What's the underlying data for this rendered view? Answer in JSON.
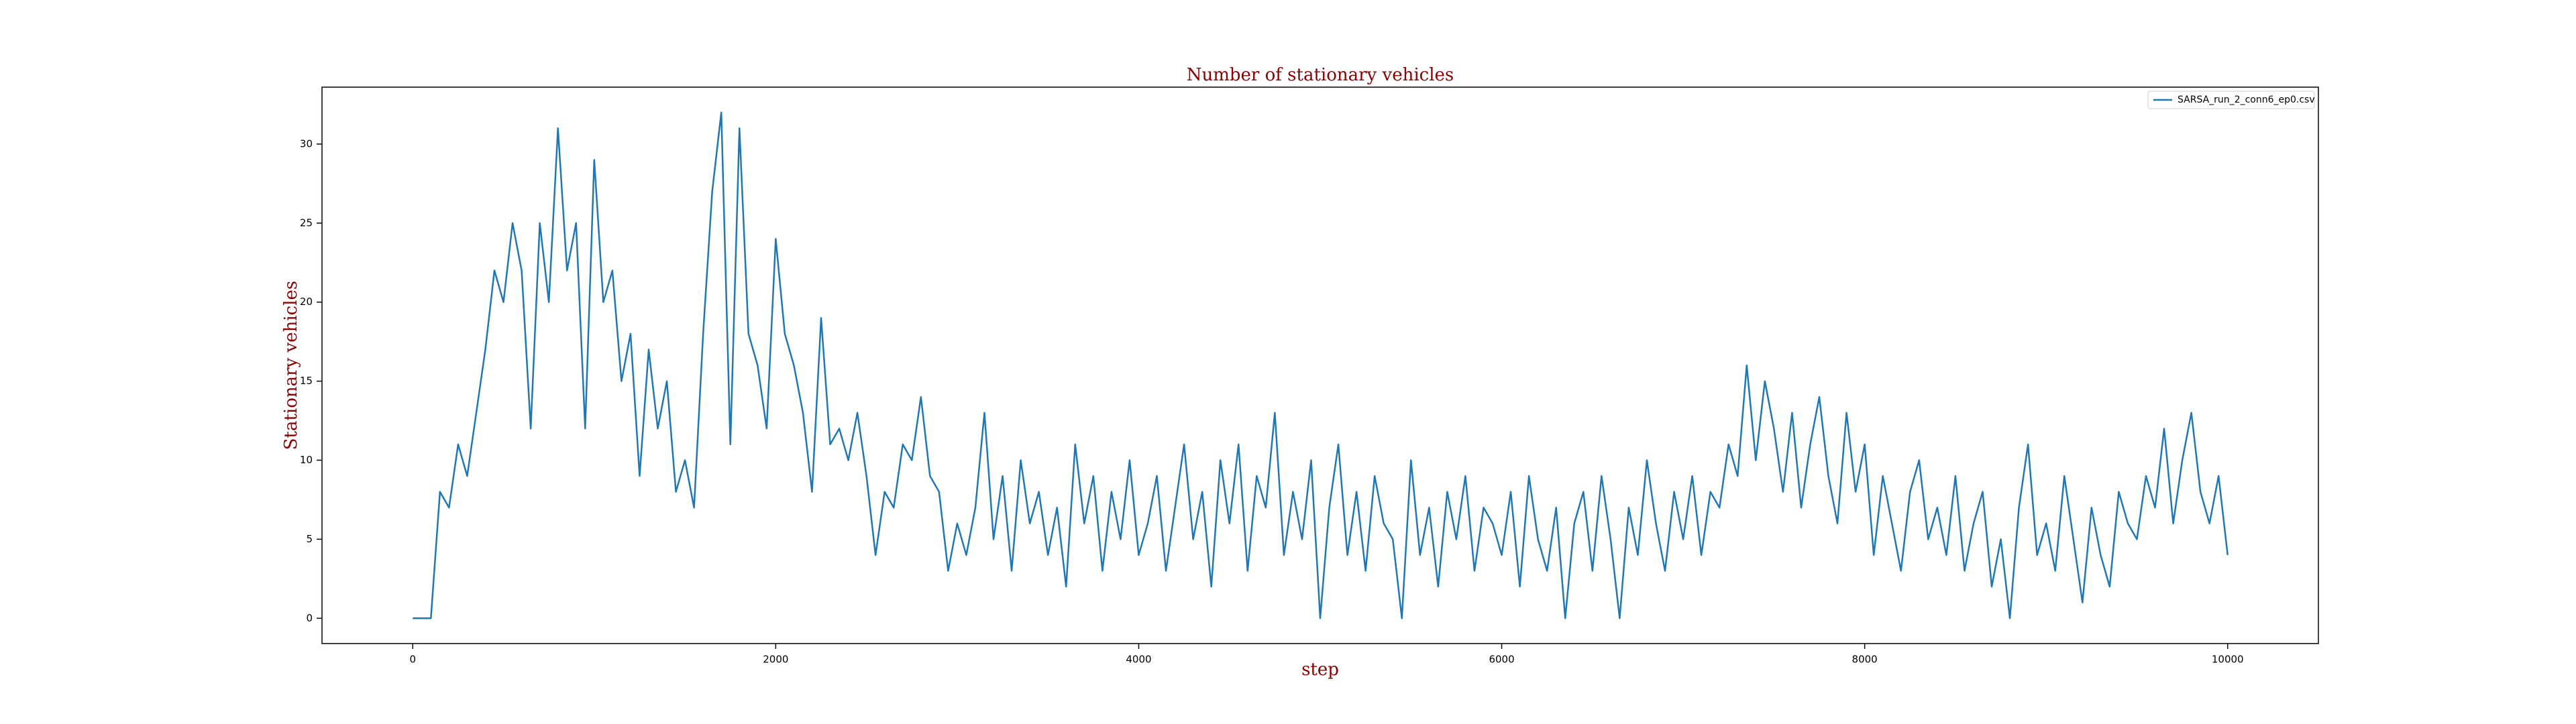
{
  "chart_data": {
    "type": "line",
    "title": "Number of stationary vehicles",
    "xlabel": "step",
    "ylabel": "Stationary vehicles",
    "x": [
      0,
      50,
      100,
      150,
      200,
      250,
      300,
      350,
      400,
      450,
      500,
      550,
      600,
      650,
      700,
      750,
      800,
      850,
      900,
      950,
      1000,
      1050,
      1100,
      1150,
      1200,
      1250,
      1300,
      1350,
      1400,
      1450,
      1500,
      1550,
      1600,
      1650,
      1700,
      1750,
      1800,
      1850,
      1900,
      1950,
      2000,
      2050,
      2100,
      2150,
      2200,
      2250,
      2300,
      2350,
      2400,
      2450,
      2500,
      2550,
      2600,
      2650,
      2700,
      2750,
      2800,
      2850,
      2900,
      2950,
      3000,
      3050,
      3100,
      3150,
      3200,
      3250,
      3300,
      3350,
      3400,
      3450,
      3500,
      3550,
      3600,
      3650,
      3700,
      3750,
      3800,
      3850,
      3900,
      3950,
      4000,
      4050,
      4100,
      4150,
      4200,
      4250,
      4300,
      4350,
      4400,
      4450,
      4500,
      4550,
      4600,
      4650,
      4700,
      4750,
      4800,
      4850,
      4900,
      4950,
      5000,
      5050,
      5100,
      5150,
      5200,
      5250,
      5300,
      5350,
      5400,
      5450,
      5500,
      5550,
      5600,
      5650,
      5700,
      5750,
      5800,
      5850,
      5900,
      5950,
      6000,
      6050,
      6100,
      6150,
      6200,
      6250,
      6300,
      6350,
      6400,
      6450,
      6500,
      6550,
      6600,
      6650,
      6700,
      6750,
      6800,
      6850,
      6900,
      6950,
      7000,
      7050,
      7100,
      7150,
      7200,
      7250,
      7300,
      7350,
      7400,
      7450,
      7500,
      7550,
      7600,
      7650,
      7700,
      7750,
      7800,
      7850,
      7900,
      7950,
      8000,
      8050,
      8100,
      8150,
      8200,
      8250,
      8300,
      8350,
      8400,
      8450,
      8500,
      8550,
      8600,
      8650,
      8700,
      8750,
      8800,
      8850,
      8900,
      8950,
      9000,
      9050,
      9100,
      9150,
      9200,
      9250,
      9300,
      9350,
      9400,
      9450,
      9500,
      9550,
      9600,
      9650,
      9700,
      9750,
      9800,
      9850,
      9900,
      9950,
      10000
    ],
    "series": [
      {
        "name": "SARSA_run_2_conn6_ep0.csv",
        "color": "#1f77b4",
        "values": [
          0,
          0,
          0,
          8,
          7,
          11,
          9,
          13,
          17,
          22,
          20,
          25,
          22,
          12,
          25,
          20,
          31,
          22,
          25,
          12,
          29,
          20,
          22,
          15,
          18,
          9,
          17,
          12,
          15,
          8,
          10,
          7,
          18,
          27,
          32,
          11,
          31,
          18,
          16,
          12,
          24,
          18,
          16,
          13,
          8,
          19,
          11,
          12,
          10,
          13,
          9,
          4,
          8,
          7,
          11,
          10,
          14,
          9,
          8,
          3,
          6,
          4,
          7,
          13,
          5,
          9,
          3,
          10,
          6,
          8,
          4,
          7,
          2,
          11,
          6,
          9,
          3,
          8,
          5,
          10,
          4,
          6,
          9,
          3,
          7,
          11,
          5,
          8,
          2,
          10,
          6,
          11,
          3,
          9,
          7,
          13,
          4,
          8,
          5,
          10,
          0,
          7,
          11,
          4,
          8,
          3,
          9,
          6,
          5,
          0,
          10,
          4,
          7,
          2,
          8,
          5,
          9,
          3,
          7,
          6,
          4,
          8,
          2,
          9,
          5,
          3,
          7,
          0,
          6,
          8,
          3,
          9,
          5,
          0,
          7,
          4,
          10,
          6,
          3,
          8,
          5,
          9,
          4,
          8,
          7,
          11,
          9,
          16,
          10,
          15,
          12,
          8,
          13,
          7,
          11,
          14,
          9,
          6,
          13,
          8,
          11,
          4,
          9,
          6,
          3,
          8,
          10,
          5,
          7,
          4,
          9,
          3,
          6,
          8,
          2,
          5,
          0,
          7,
          11,
          4,
          6,
          3,
          9,
          5,
          1,
          7,
          4,
          2,
          8,
          6,
          5,
          9,
          7,
          12,
          6,
          10,
          13,
          8,
          6,
          9,
          4
        ]
      }
    ],
    "xlim": [
      -500,
      10500
    ],
    "xticks": [
      0,
      2000,
      4000,
      6000,
      8000,
      10000
    ],
    "ylim": [
      -1.6,
      33.6
    ],
    "yticks": [
      0,
      5,
      10,
      15,
      20,
      25,
      30
    ],
    "legend": "upper right"
  }
}
